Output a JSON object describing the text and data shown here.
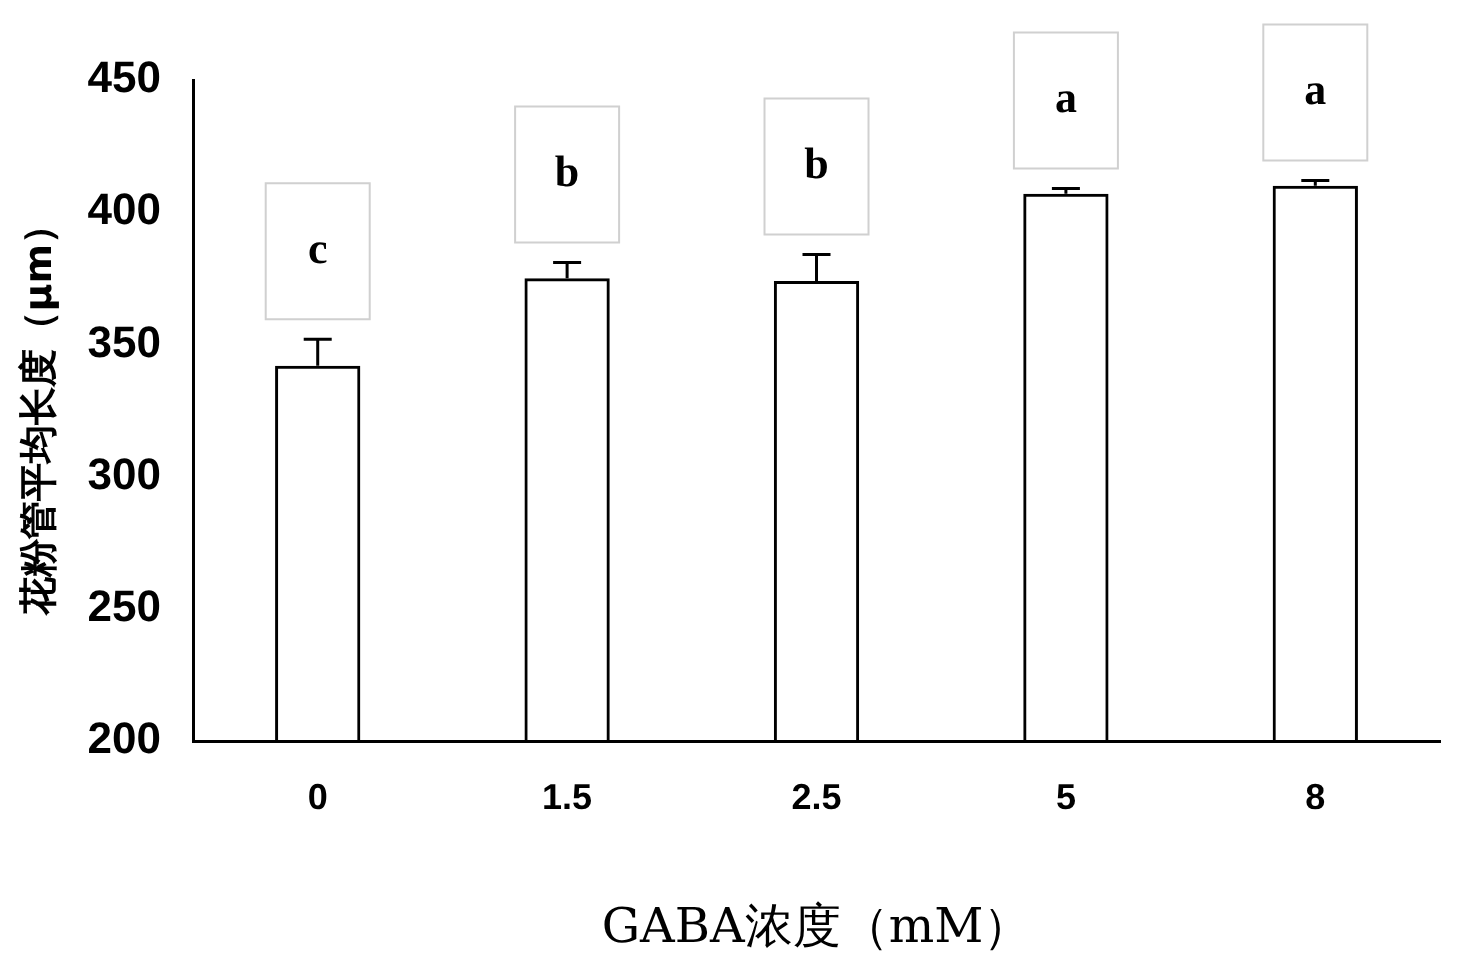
{
  "chart_data": {
    "type": "bar",
    "xlabel": "GABA浓度（mM）",
    "ylabel": "花粉管平均长度（μm）",
    "categories": [
      "0",
      "1.5",
      "2.5",
      "5",
      "8"
    ],
    "values": [
      342,
      375,
      374,
      407,
      410
    ],
    "errors": [
      10,
      6,
      10,
      2,
      2
    ],
    "color": "#000000",
    "ylim": [
      200,
      450
    ],
    "yticks": [
      200,
      250,
      300,
      350,
      400,
      450
    ],
    "grid": false,
    "legend": false,
    "annotations": [
      "c",
      "b",
      "b",
      "a",
      "a"
    ]
  }
}
